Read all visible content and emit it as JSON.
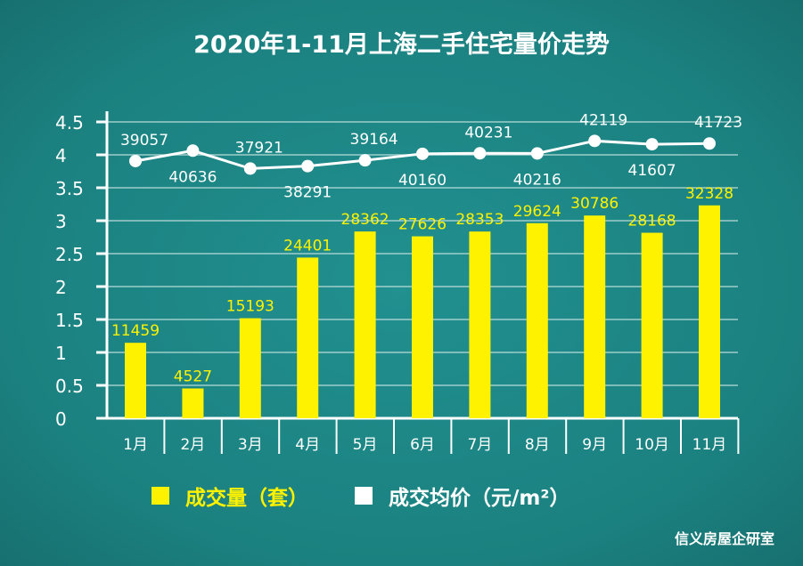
{
  "title": "2020年1-11月上海二手住宅量价走势",
  "credit": "信义房屋企研室",
  "colors": {
    "bar": "#fff200",
    "line": "#ffffff",
    "grid": "#bfe0dd",
    "background": "#1d8786"
  },
  "chart_data": {
    "type": "bar+line",
    "title": "2020年1-11月上海二手住宅量价走势",
    "categories": [
      "1月",
      "2月",
      "3月",
      "4月",
      "5月",
      "6月",
      "7月",
      "8月",
      "9月",
      "10月",
      "11月"
    ],
    "yticks": [
      "0",
      "0.5",
      "1",
      "1.5",
      "2",
      "2.5",
      "3",
      "3.5",
      "4",
      "4.5"
    ],
    "ylim": [
      0,
      4.5
    ],
    "grid": true,
    "legend_position": "bottom",
    "series": [
      {
        "name": "成交量（套）",
        "type": "bar",
        "values": [
          11459,
          4527,
          15193,
          24401,
          28362,
          27626,
          28353,
          29624,
          30786,
          28168,
          32328
        ]
      },
      {
        "name": "成交均价（元/m²）",
        "type": "line",
        "values": [
          39057,
          40636,
          37921,
          38291,
          39164,
          40160,
          40231,
          40216,
          42119,
          41607,
          41723
        ]
      }
    ]
  }
}
